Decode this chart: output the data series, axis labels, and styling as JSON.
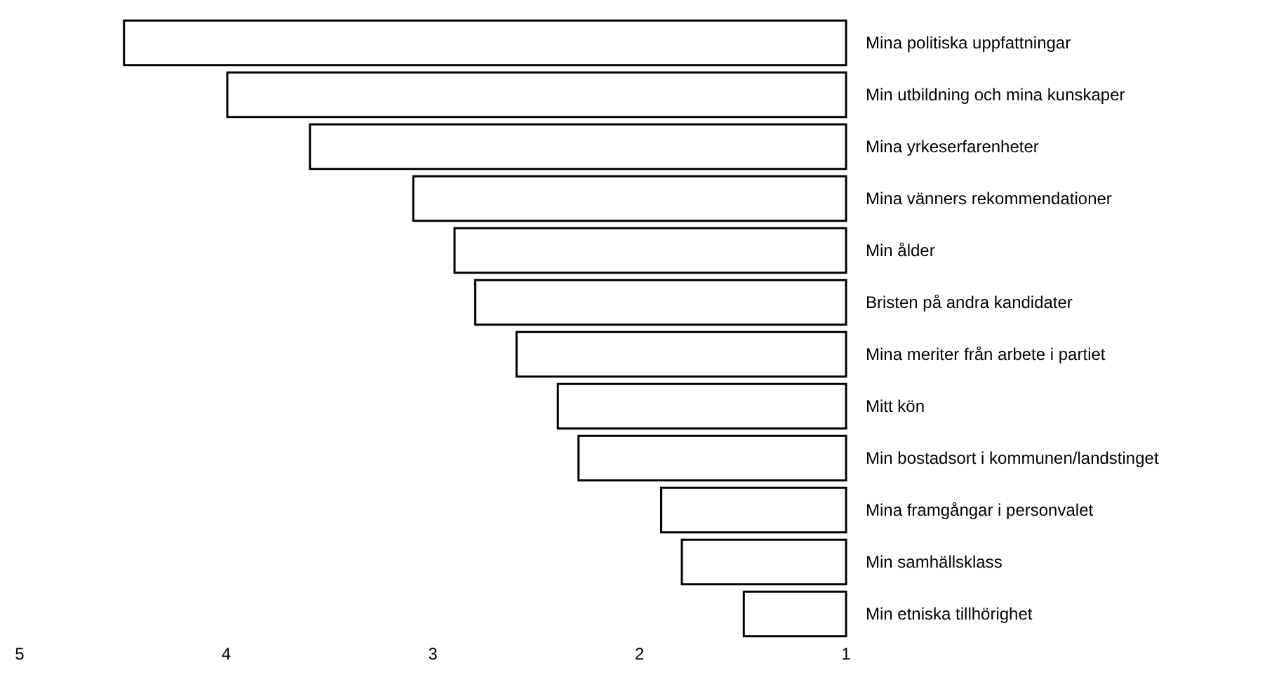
{
  "chart_data": {
    "type": "bar",
    "orientation": "horizontal",
    "categories": [
      "Mina politiska uppfattningar",
      "Min utbildning och mina kunskaper",
      "Mina yrkeserfarenheter",
      "Mina vänners rekommendationer",
      "Min ålder",
      "Bristen på andra kandidater",
      "Mina meriter från arbete i partiet",
      "Mitt kön",
      "Min bostadsort i kommunen/landstinget",
      "Mina framgångar i personvalet",
      "Min samhällsklass",
      "Min etniska tillhörighet"
    ],
    "values": [
      4.5,
      4.0,
      3.6,
      3.1,
      2.9,
      2.8,
      2.6,
      2.4,
      2.3,
      1.9,
      1.8,
      1.5
    ],
    "color": "#ffffff",
    "xlim": [
      5,
      1
    ],
    "xticks": [
      5,
      4,
      3,
      2,
      1
    ],
    "grid": false
  }
}
